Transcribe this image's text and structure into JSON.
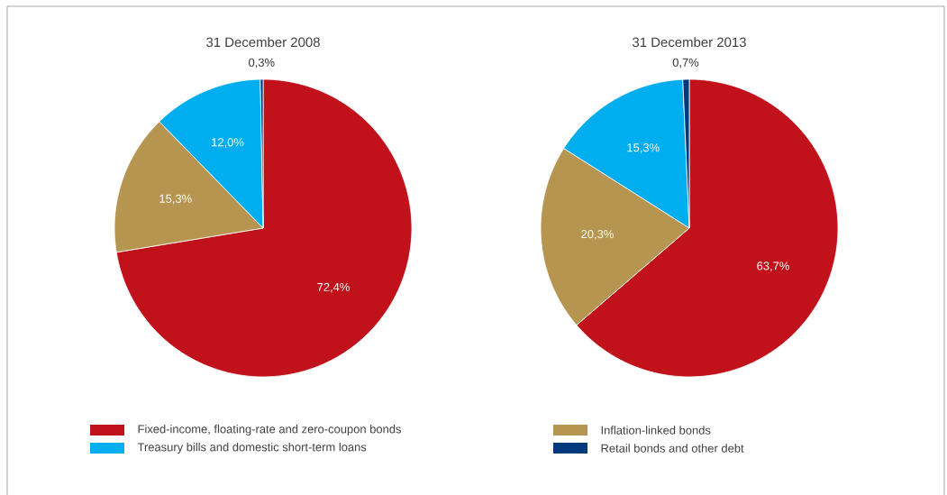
{
  "chart_data": [
    {
      "type": "pie",
      "title": "31 December 2008",
      "categories": [
        "Fixed-income, floating-rate and zero-coupon bonds",
        "Inflation-linked bonds",
        "Treasury bills and domestic short-term loans",
        "Retail bonds and other debt"
      ],
      "values": [
        72.4,
        15.3,
        12.0,
        0.3
      ],
      "value_labels": [
        "72,4%",
        "15,3%",
        "12,0%",
        "0,3%"
      ],
      "colors": [
        "#c1121c",
        "#b59550",
        "#00adef",
        "#003a7d"
      ],
      "legend": "bottom"
    },
    {
      "type": "pie",
      "title": "31 December 2013",
      "categories": [
        null,
        null,
        null,
        null
      ],
      "values": [
        63.7,
        20.3,
        15.3,
        0.7
      ],
      "value_labels": [
        "63,7%",
        "20,3%",
        "15,3%",
        "0,7%"
      ],
      "colors": [
        "#c1121c",
        "#b59550",
        "#00adef",
        "#003a7d"
      ]
    }
  ]
}
